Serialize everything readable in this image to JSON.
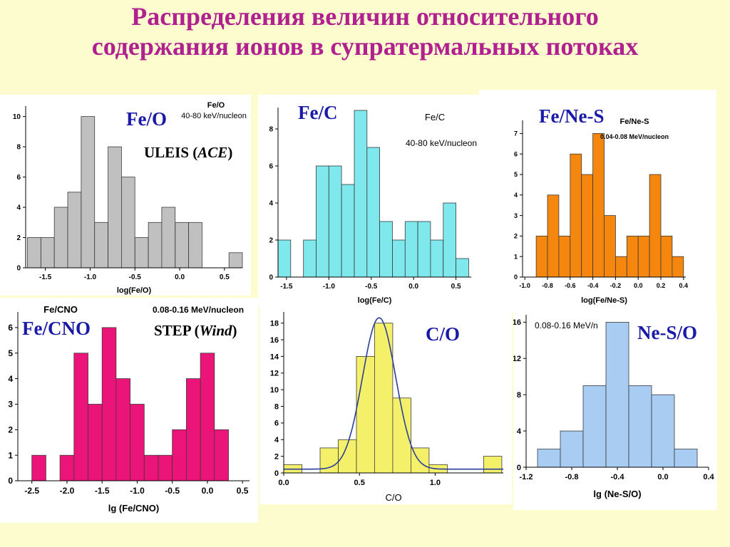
{
  "title": {
    "line1": "Распределения величин относительного",
    "line2": "содержания ионов в супратермальных потоках"
  },
  "labels": {
    "fe_o": "Fe/O",
    "fe_c": "Fe/C",
    "fe_ne_s": "Fe/Ne-S",
    "fe_cno": "Fe/CNO",
    "c_o": "C/O",
    "ne_s_o": "Ne-S/O",
    "uleis_prefix": "ULEIS (",
    "uleis_italic": "ACE",
    "uleis_suffix": ")",
    "step_prefix": "STEP (",
    "step_italic": "Wind",
    "step_suffix": ")"
  },
  "colors": {
    "title": "#b0208f",
    "labels": "#1a1aa8",
    "background": "#fdfccf"
  },
  "chart_data": [
    {
      "id": "fe-o",
      "type": "bar",
      "title": "Fe/O",
      "subtitle": "40-80 keV/nucleon",
      "xlabel": "log(Fe/O)",
      "ylabel": "",
      "xlim": [
        -1.72,
        0.7
      ],
      "ylim": [
        0,
        10.5
      ],
      "xticks": [
        -1.5,
        -1.0,
        -0.5,
        0.0,
        0.5
      ],
      "xtick_labels": [
        "-1.5",
        "-1.0",
        "-0.5",
        "0.0",
        "0.5"
      ],
      "yticks": [
        0,
        2,
        4,
        6,
        8,
        10
      ],
      "bin_start": -1.7,
      "bin_width": 0.15,
      "values": [
        2,
        2,
        4,
        5,
        10,
        3,
        8,
        6,
        2,
        3,
        4,
        3,
        3,
        0,
        0,
        1
      ],
      "color": "#c0c0c0"
    },
    {
      "id": "fe-c",
      "type": "bar",
      "title": "Fe/C",
      "subtitle": "40-80 keV/nucleon",
      "xlabel": "log(Fe/C)",
      "ylabel": "",
      "xlim": [
        -1.6,
        0.68
      ],
      "ylim": [
        0,
        9
      ],
      "xticks": [
        -1.5,
        -1.0,
        -0.5,
        0.0,
        0.5
      ],
      "xtick_labels": [
        "-1.5",
        "-1.0",
        "-0.5",
        "0.0",
        "0.5"
      ],
      "yticks": [
        0,
        2,
        4,
        6,
        8
      ],
      "bin_start": -1.6,
      "bin_width": 0.15,
      "values": [
        2,
        0,
        2,
        6,
        6,
        5,
        9,
        7,
        3,
        2,
        3,
        3,
        2,
        4,
        1
      ],
      "color": "#7fe8ec"
    },
    {
      "id": "fe-ne-s",
      "type": "bar",
      "title": "Fe/Ne-S",
      "subtitle": "0.04-0.08 MeV/nucleon",
      "xlabel": "log(Fe/Ne-S)",
      "ylabel": "",
      "xlim": [
        -1.02,
        0.42
      ],
      "ylim": [
        0,
        7.5
      ],
      "xticks": [
        -1.0,
        -0.8,
        -0.6,
        -0.4,
        -0.2,
        0.0,
        0.2,
        0.4
      ],
      "xtick_labels": [
        "-1.0",
        "-0.8",
        "-0.6",
        "-0.4",
        "-0.2",
        "0.0",
        "0.2",
        "0.4"
      ],
      "yticks": [
        0,
        1,
        2,
        3,
        4,
        5,
        6,
        7
      ],
      "bin_start": -0.9,
      "bin_width": 0.1,
      "values": [
        2,
        4,
        2,
        6,
        5,
        7,
        3,
        1,
        2,
        2,
        5,
        2,
        1
      ],
      "color": "#f5870f"
    },
    {
      "id": "fe-cno",
      "type": "bar",
      "title": "Fe/CNO",
      "subtitle": "0.08-0.16 MeV/nucleon",
      "xlabel": "lg (Fe/CNO)",
      "ylabel": "",
      "xlim": [
        -2.7,
        0.6
      ],
      "ylim": [
        0,
        6.5
      ],
      "xticks": [
        -2.5,
        -2.0,
        -1.5,
        -1.0,
        -0.5,
        0.0,
        0.5
      ],
      "xtick_labels": [
        "-2.5",
        "-2.0",
        "-1.5",
        "-1.0",
        "-0.5",
        "0.0",
        "0.5"
      ],
      "yticks": [
        0,
        1,
        2,
        3,
        4,
        5,
        6
      ],
      "bin_start": -2.5,
      "bin_width": 0.2,
      "values": [
        1,
        0,
        1,
        5,
        3,
        6,
        4,
        3,
        1,
        1,
        2,
        4,
        5,
        2
      ],
      "color": "#eb1478"
    },
    {
      "id": "c-o",
      "type": "bar",
      "title": "",
      "subtitle": "",
      "xlabel": "C/O",
      "ylabel": "",
      "xlim": [
        0.0,
        1.45
      ],
      "ylim": [
        0,
        19
      ],
      "xticks": [
        0.0,
        0.5,
        1.0
      ],
      "xtick_labels": [
        "0.0",
        "0.5",
        "1.0"
      ],
      "yticks": [
        0,
        2,
        4,
        6,
        8,
        10,
        12,
        14,
        16,
        18
      ],
      "bar_edges": [
        0.0,
        0.12,
        0.24,
        0.36,
        0.48,
        0.6,
        0.72,
        0.84,
        0.96,
        1.08,
        1.2,
        1.32,
        1.44
      ],
      "values": [
        1,
        0,
        3,
        4,
        14,
        18,
        9,
        3,
        1,
        0,
        0,
        2
      ],
      "fit_curve": {
        "type": "gaussian",
        "center": 0.63,
        "sigma": 0.11,
        "amplitude": 18.2,
        "color": "#2a3f9a"
      },
      "color": "#f5f06a"
    },
    {
      "id": "ne-s-o",
      "type": "bar",
      "title": "",
      "subtitle": "0.08-0.16 MeV/n",
      "xlabel": "lg (Ne-S/O)",
      "ylabel": "",
      "xlim": [
        -1.2,
        0.4
      ],
      "ylim": [
        0,
        16.5
      ],
      "xticks": [
        -1.2,
        -0.8,
        -0.4,
        0.0,
        0.4
      ],
      "xtick_labels": [
        "-1.2",
        "-0.8",
        "-0.4",
        "0.0",
        "0.4"
      ],
      "yticks": [
        0,
        4,
        8,
        12,
        16
      ],
      "bar_edges": [
        -1.1,
        -0.9,
        -0.7,
        -0.5,
        -0.3,
        -0.1,
        0.1,
        0.3
      ],
      "values": [
        2,
        4,
        9,
        16,
        9,
        8,
        2
      ],
      "color": "#a9cdf2"
    }
  ]
}
